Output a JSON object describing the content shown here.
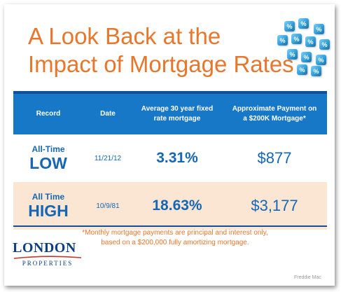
{
  "title": {
    "line1": "A Look Back at the",
    "line2": "Impact of Mortgage Rates"
  },
  "dice_symbol": "%",
  "table": {
    "headers": {
      "record": "Record",
      "date": "Date",
      "rate_line1": "Average 30 year fixed",
      "rate_line2": "rate mortgage",
      "payment_line1": "Approximate Payment on",
      "payment_line2": "a $200K Mortgage*"
    },
    "rows": [
      {
        "label_small": "All-Time",
        "label_big": "LOW",
        "date": "11/21/12",
        "rate": "3.31%",
        "payment": "$877"
      },
      {
        "label_small": "All Time",
        "label_big": "HIGH",
        "date": "10/9/81",
        "rate": "18.63%",
        "payment": "$3,177"
      }
    ]
  },
  "footnote": {
    "line1": "*Monthly mortgage payments are principal and interest only,",
    "line2": "based on a $200,000 fully amortizing mortgage."
  },
  "logo": {
    "main": "LONDON",
    "sub": "PROPERTIES"
  },
  "source": "Freddie Mac",
  "colors": {
    "title": "#e8762b",
    "header_bg": "#1878c8",
    "value_text": "#1566b5",
    "high_row_bg": "#fae6d3",
    "logo": "#0e3f82"
  }
}
